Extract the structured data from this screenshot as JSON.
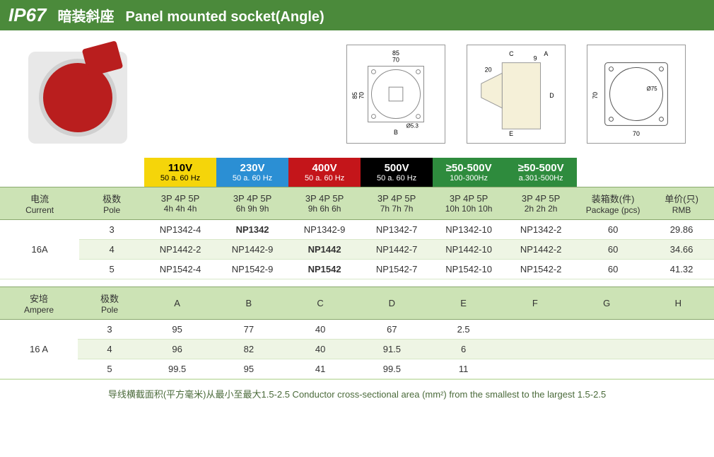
{
  "header": {
    "ip": "IP67",
    "cn": "暗装斜座",
    "en": "Panel mounted socket(Angle)"
  },
  "voltages": [
    {
      "main": "110V",
      "sub": "50 a. 60 Hz",
      "cls": "v110"
    },
    {
      "main": "230V",
      "sub": "50 a. 60 Hz",
      "cls": "v230"
    },
    {
      "main": "400V",
      "sub": "50 a. 60 Hz",
      "cls": "v400"
    },
    {
      "main": "500V",
      "sub": "50 a. 60 Hz",
      "cls": "v500"
    },
    {
      "main": "≥50-500V",
      "sub": "100-300Hz",
      "cls": "vg1"
    },
    {
      "main": "≥50-500V",
      "sub": "a.301-500Hz",
      "cls": "vg2"
    }
  ],
  "table1": {
    "hdr": {
      "current_cn": "电流",
      "current_en": "Current",
      "pole_cn": "极数",
      "pole_en": "Pole",
      "pkg_cn": "装箱数(件)",
      "pkg_en": "Package (pcs)",
      "price_cn": "单价(只)",
      "price_en": "RMB"
    },
    "phase_top": [
      "3P  4P  5P",
      "3P  4P  5P",
      "3P  4P  5P",
      "3P  4P  5P",
      "3P  4P  5P",
      "3P  4P  5P"
    ],
    "phase_sub": [
      "4h 4h  4h",
      "6h 9h  9h",
      "9h 6h  6h",
      "7h 7h  7h",
      "10h 10h 10h",
      "2h 2h 2h"
    ],
    "current": "16A",
    "rows": [
      {
        "pole": "3",
        "cells": [
          "NP1342-4",
          "NP1342",
          "NP1342-9",
          "NP1342-7",
          "NP1342-10",
          "NP1342-2"
        ],
        "bold": [
          false,
          true,
          false,
          false,
          false,
          false
        ],
        "pkg": "60",
        "price": "29.86"
      },
      {
        "pole": "4",
        "cells": [
          "NP1442-2",
          "NP1442-9",
          "NP1442",
          "NP1442-7",
          "NP1442-10",
          "NP1442-2"
        ],
        "bold": [
          false,
          false,
          true,
          false,
          false,
          false
        ],
        "pkg": "60",
        "price": "34.66"
      },
      {
        "pole": "5",
        "cells": [
          "NP1542-4",
          "NP1542-9",
          "NP1542",
          "NP1542-7",
          "NP1542-10",
          "NP1542-2"
        ],
        "bold": [
          false,
          false,
          true,
          false,
          false,
          false
        ],
        "pkg": "60",
        "price": "41.32"
      }
    ]
  },
  "table2": {
    "hdr": {
      "amp_cn": "安培",
      "amp_en": "Ampere",
      "pole_cn": "极数",
      "pole_en": "Pole",
      "cols": [
        "A",
        "B",
        "C",
        "D",
        "E",
        "F",
        "G",
        "H"
      ]
    },
    "current": "16 A",
    "rows": [
      {
        "pole": "3",
        "vals": [
          "95",
          "77",
          "40",
          "67",
          "2.5",
          "",
          "",
          ""
        ]
      },
      {
        "pole": "4",
        "vals": [
          "96",
          "82",
          "40",
          "91.5",
          "6",
          "",
          "",
          ""
        ]
      },
      {
        "pole": "5",
        "vals": [
          "99.5",
          "95",
          "41",
          "99.5",
          "11",
          "",
          "",
          ""
        ]
      }
    ]
  },
  "footer": "导线横截面积(平方毫米)从最小至最大1.5-2.5    Conductor cross-sectional area (mm²) from the smallest to the largest 1.5-2.5",
  "diagram_labels": {
    "d1_w": "85",
    "d1_w2": "70",
    "d1_h": "85",
    "d1_h2": "70",
    "d1_b": "B",
    "d1_hole": "Ø5.3",
    "d2_a": "A",
    "d2_c": "C",
    "d2_9": "9",
    "d2_20": "20",
    "d2_d": "D",
    "d2_e": "E",
    "d3_w": "70",
    "d3_h": "70",
    "d3_dia": "Ø75"
  }
}
